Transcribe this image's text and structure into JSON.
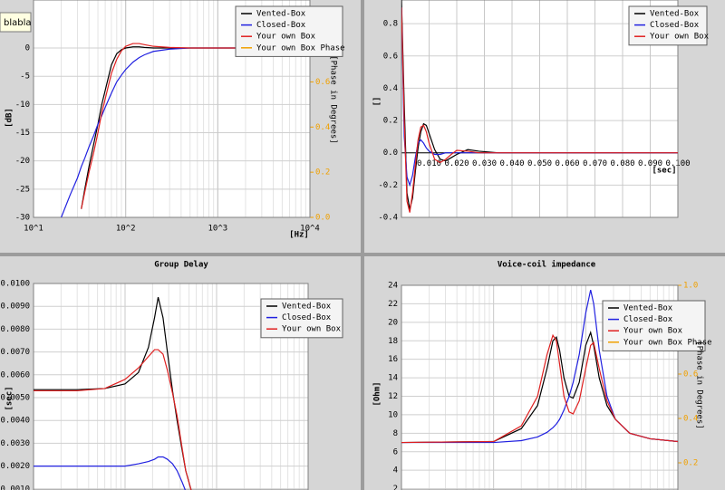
{
  "tooltip": "blabla",
  "chart_data": [
    {
      "type": "line",
      "ylabel": "[dB]",
      "xlabel": "[Hz]",
      "y2label": "[Phase in Degrees]",
      "log_x": true,
      "grid": true,
      "legend": "upper right",
      "xlim": [
        10,
        10000
      ],
      "ylim": [
        -30,
        10
      ],
      "y2lim": [
        0,
        1
      ],
      "xticks": [
        {
          "value": 10,
          "label": "10^1"
        },
        {
          "value": 100,
          "label": "10^2"
        },
        {
          "value": 1000,
          "label": "10^3"
        },
        {
          "value": 10000,
          "label": "10^4"
        }
      ],
      "yticks": [
        -30,
        -25,
        -20,
        -15,
        -10,
        -5,
        0
      ],
      "y2ticks": [
        {
          "value": 0,
          "label": "0.0"
        },
        0.2,
        0.4,
        0.6
      ],
      "x": [
        20,
        25,
        30,
        33,
        36,
        40,
        45,
        50,
        55,
        60,
        70,
        80,
        90,
        100,
        120,
        140,
        160,
        200,
        300,
        500,
        1000,
        3000,
        10000
      ],
      "series": [
        {
          "name": "Vented-Box",
          "color": "#000000",
          "values": [
            null,
            null,
            null,
            -28.5,
            -25,
            -21,
            -17,
            -13.5,
            -10,
            -7.5,
            -3,
            -1,
            -0.3,
            0,
            0.2,
            0.2,
            0.1,
            0,
            0,
            0,
            0,
            0,
            0
          ]
        },
        {
          "name": "Closed-Box",
          "color": "#2020e0",
          "values": [
            -30,
            -26,
            -23,
            -21,
            -19.5,
            -17.5,
            -15.5,
            -13.5,
            -12,
            -10.5,
            -8,
            -6,
            -4.8,
            -3.8,
            -2.5,
            -1.7,
            -1.2,
            -0.6,
            -0.2,
            0,
            0,
            0,
            0
          ]
        },
        {
          "name": "Your own Box",
          "color": "#e02020",
          "values": [
            null,
            null,
            null,
            -28.5,
            -25.5,
            -22,
            -18.5,
            -15,
            -11.5,
            -9,
            -4.5,
            -2,
            -0.5,
            0.3,
            0.8,
            0.8,
            0.6,
            0.3,
            0.1,
            0,
            0,
            0,
            0
          ]
        },
        {
          "name": "Your own Box Phase",
          "color": "#f0a000",
          "axis": "y2",
          "values": [
            null,
            null,
            null,
            null,
            null,
            null,
            null,
            null,
            null,
            null,
            null,
            null,
            null,
            null,
            null,
            null,
            null,
            null,
            null,
            null,
            null,
            null,
            null
          ]
        }
      ]
    },
    {
      "type": "line",
      "ylabel": "[]",
      "xlabel": "[sec]",
      "log_x": false,
      "grid": true,
      "legend": "upper right",
      "xlim": [
        0,
        0.1
      ],
      "ylim": [
        -0.4,
        1
      ],
      "xticks": [
        {
          "value": 0.01,
          "label": "0.010"
        },
        {
          "value": 0.02,
          "label": "0.020"
        },
        {
          "value": 0.03,
          "label": "0.030"
        },
        {
          "value": 0.04,
          "label": "0.040"
        },
        {
          "value": 0.05,
          "label": "0.050"
        },
        {
          "value": 0.06,
          "label": "0.060"
        },
        {
          "value": 0.07,
          "label": "0.070"
        },
        {
          "value": 0.08,
          "label": "0.080"
        },
        {
          "value": 0.09,
          "label": "0.090"
        },
        {
          "value": 0.1,
          "label": "0.100"
        }
      ],
      "yticks": [
        -0.4,
        -0.2,
        {
          "value": 0,
          "label": "0.0"
        },
        0.2,
        0.4,
        0.6,
        0.8
      ],
      "x": [
        0,
        0.001,
        0.002,
        0.003,
        0.004,
        0.005,
        0.006,
        0.007,
        0.008,
        0.009,
        0.01,
        0.012,
        0.014,
        0.016,
        0.018,
        0.02,
        0.024,
        0.028,
        0.035,
        0.05,
        0.1
      ],
      "series": [
        {
          "name": "Vented-Box",
          "color": "#000000",
          "values": [
            0.95,
            0.3,
            -0.25,
            -0.35,
            -0.28,
            -0.12,
            0.03,
            0.13,
            0.18,
            0.17,
            0.12,
            0.02,
            -0.04,
            -0.05,
            -0.03,
            -0.01,
            0.02,
            0.01,
            0,
            0,
            0
          ]
        },
        {
          "name": "Closed-Box",
          "color": "#2020e0",
          "values": [
            0.9,
            0.1,
            -0.15,
            -0.2,
            -0.14,
            -0.03,
            0.06,
            0.08,
            0.06,
            0.03,
            0.01,
            -0.01,
            -0.01,
            0,
            0,
            0,
            0,
            0,
            0,
            0,
            0
          ]
        },
        {
          "name": "Your own Box",
          "color": "#e02020",
          "values": [
            0.9,
            0.2,
            -0.3,
            -0.37,
            -0.25,
            -0.08,
            0.08,
            0.16,
            0.17,
            0.13,
            0.06,
            -0.04,
            -0.06,
            -0.04,
            -0.01,
            0.015,
            0.01,
            0,
            0,
            0,
            0
          ]
        }
      ]
    },
    {
      "type": "line",
      "title": "Group Delay",
      "ylabel": "[sec]",
      "log_x": true,
      "grid": true,
      "legend": "upper right",
      "xlim": [
        1,
        1000
      ],
      "ylim": [
        0,
        0.01
      ],
      "yticks": [
        {
          "value": 0.001,
          "label": "0.0010"
        },
        {
          "value": 0.002,
          "label": "0.0020"
        },
        {
          "value": 0.003,
          "label": "0.0030"
        },
        {
          "value": 0.004,
          "label": "0.0040"
        },
        {
          "value": 0.005,
          "label": "0.0050"
        },
        {
          "value": 0.006,
          "label": "0.0060"
        },
        {
          "value": 0.007,
          "label": "0.0070"
        },
        {
          "value": 0.008,
          "label": "0.0080"
        },
        {
          "value": 0.009,
          "label": "0.0090"
        },
        {
          "value": 0.01,
          "label": "0.0100"
        }
      ],
      "x": [
        1,
        3,
        6,
        10,
        14,
        18,
        21,
        23,
        26,
        29,
        33,
        37,
        42,
        46,
        54
      ],
      "series": [
        {
          "name": "Vented-Box",
          "color": "#000000",
          "values": [
            0.00535,
            0.00535,
            0.0054,
            0.0056,
            0.0061,
            0.0072,
            0.0085,
            0.0094,
            0.0085,
            0.007,
            0.0053,
            0.004,
            0.0027,
            0.0018,
            0.0008
          ]
        },
        {
          "name": "Closed-Box",
          "color": "#2020e0",
          "values": [
            0.002,
            0.002,
            0.002,
            0.002,
            0.0021,
            0.0022,
            0.0023,
            0.0024,
            0.0024,
            0.0023,
            0.0021,
            0.0018,
            0.0013,
            0.0009,
            0.0002
          ]
        },
        {
          "name": "Your own Box",
          "color": "#e02020",
          "values": [
            0.0053,
            0.0053,
            0.0054,
            0.0058,
            0.0063,
            0.0068,
            0.0071,
            0.0071,
            0.0069,
            0.0062,
            0.0052,
            0.0042,
            0.0028,
            0.0018,
            0.0008
          ]
        }
      ]
    },
    {
      "type": "line",
      "title": "Voice-coil impedance",
      "ylabel": "[Ohm]",
      "y2label": "[Phase in Degrees]",
      "log_x": true,
      "grid": true,
      "legend": "upper right",
      "xlim": [
        1,
        1000
      ],
      "ylim": [
        0,
        24
      ],
      "y2lim": [
        0,
        1
      ],
      "yticks": [
        2,
        4,
        6,
        8,
        10,
        12,
        14,
        16,
        18,
        20,
        22,
        24
      ],
      "y2ticks": [
        0.2,
        0.4,
        0.6,
        0.8,
        {
          "value": 1,
          "label": "1.0"
        }
      ],
      "x": [
        1,
        10,
        20,
        30,
        38,
        44,
        48,
        52,
        58,
        66,
        73,
        85,
        100,
        113,
        122,
        140,
        170,
        210,
        300,
        500,
        1000
      ],
      "series": [
        {
          "name": "Vented-Box",
          "color": "#000000",
          "values": [
            7,
            7.1,
            8.5,
            11,
            15,
            18,
            18.4,
            17,
            14,
            12,
            11.8,
            13.5,
            17.5,
            18.9,
            17.5,
            14,
            11,
            9.5,
            8,
            7.4,
            7.1
          ]
        },
        {
          "name": "Closed-Box",
          "color": "#2020e0",
          "values": [
            7,
            7,
            7.2,
            7.6,
            8.1,
            8.6,
            9,
            9.5,
            10.5,
            12,
            13.5,
            16.5,
            21,
            23.5,
            22,
            17,
            12,
            9.5,
            8,
            7.4,
            7.1
          ]
        },
        {
          "name": "Your own Box",
          "color": "#e02020",
          "values": [
            7,
            7.1,
            8.8,
            12,
            16.5,
            18.6,
            18,
            15.5,
            12,
            10.3,
            10.1,
            11.5,
            15,
            17.5,
            17.8,
            15,
            11.5,
            9.5,
            8,
            7.4,
            7.1
          ]
        },
        {
          "name": "Your own Box Phase",
          "color": "#f0a000",
          "axis": "y2",
          "values": [
            null,
            null,
            null,
            null,
            null,
            null,
            null,
            null,
            null,
            null,
            null,
            null,
            null,
            null,
            null,
            null,
            null,
            null,
            null,
            null,
            null
          ]
        }
      ]
    }
  ]
}
